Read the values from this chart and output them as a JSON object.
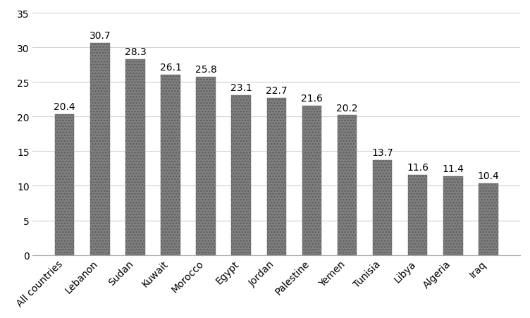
{
  "categories": [
    "All countries",
    "Lebanon",
    "Sudan",
    "Kuwait",
    "Morocco",
    "Egypt",
    "Jordan",
    "Palestine",
    "Yemen",
    "Tunisia",
    "Libya",
    "Algeria",
    "Iraq"
  ],
  "values": [
    20.4,
    30.7,
    28.3,
    26.1,
    25.8,
    23.1,
    22.7,
    21.6,
    20.2,
    13.7,
    11.6,
    11.4,
    10.4
  ],
  "bar_color": "#7f7f7f",
  "bar_hatch": "....",
  "bar_edgecolor": "#5a5a5a",
  "ylim": [
    0,
    35
  ],
  "yticks": [
    0,
    5,
    10,
    15,
    20,
    25,
    30,
    35
  ],
  "tick_fontsize": 10,
  "value_fontsize": 10,
  "background_color": "#ffffff",
  "grid_color": "#d0d0d0",
  "bar_width": 0.55
}
